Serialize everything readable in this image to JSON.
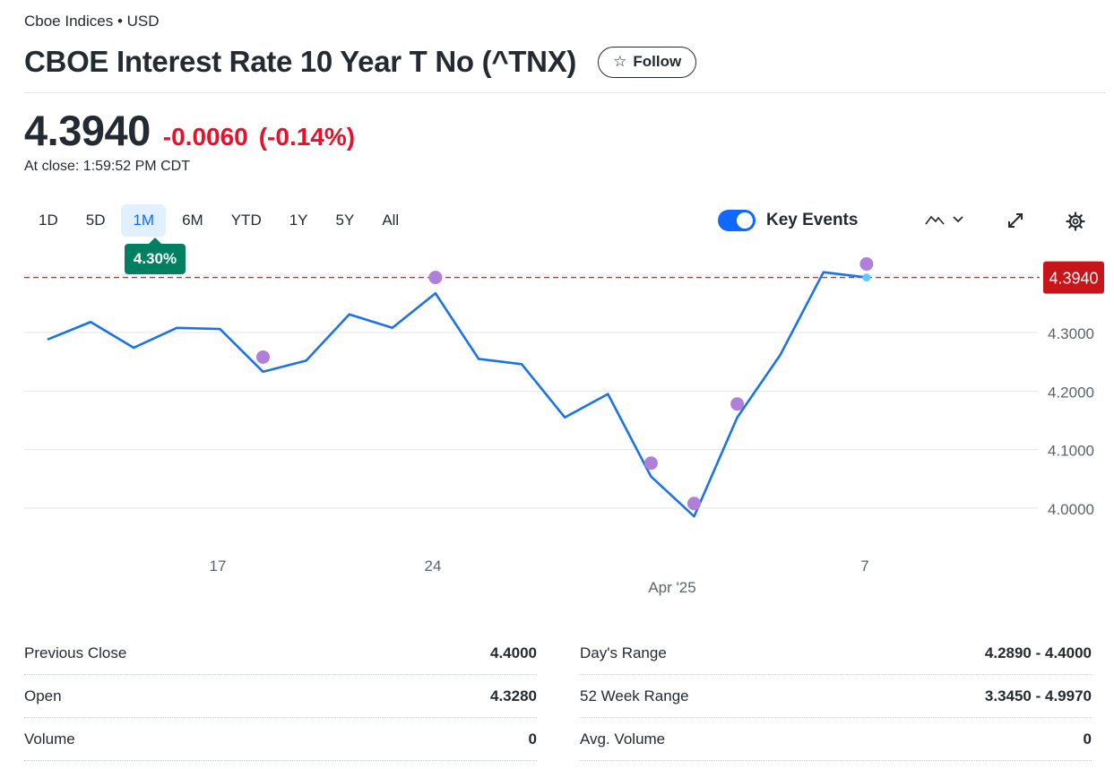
{
  "header": {
    "exchange": "Cboe Indices • USD",
    "title": "CBOE Interest Rate 10 Year T No (^TNX)",
    "follow_label": "Follow"
  },
  "quote": {
    "price": "4.3940",
    "change": "-0.0060",
    "change_pct": "(-0.14%)",
    "close_time": "At close: 1:59:52 PM CDT"
  },
  "ranges": [
    "1D",
    "5D",
    "1M",
    "6M",
    "YTD",
    "1Y",
    "5Y",
    "All"
  ],
  "active_range": "1M",
  "tooltip": "4.30%",
  "key_events": {
    "label": "Key Events",
    "enabled": true
  },
  "icons": [
    "star-icon",
    "mountain-chart-icon",
    "chevron-down-icon",
    "expand-icon",
    "gear-icon"
  ],
  "colors": {
    "line": "#1a73e8",
    "down": "#eb0f29",
    "event": "#b07fd9",
    "tooltip": "#008060"
  },
  "chart_data": {
    "type": "line",
    "y_ticks": [
      "4.3000",
      "4.2000",
      "4.1000",
      "4.0000"
    ],
    "x_ticks": [
      "17",
      "24",
      "7"
    ],
    "x_sublabel": "Apr '25",
    "price_label": "4.3940",
    "reference_value": 4.394,
    "ylim": [
      3.965,
      4.41
    ],
    "values": [
      4.288,
      4.318,
      4.274,
      4.308,
      4.306,
      4.233,
      4.252,
      4.331,
      4.308,
      4.367,
      4.255,
      4.246,
      4.155,
      4.195,
      4.054,
      3.986,
      4.155,
      4.262,
      4.403,
      4.394
    ],
    "event_indices": [
      5,
      9,
      14,
      15,
      16,
      19
    ],
    "event_values": [
      4.258,
      4.394,
      4.077,
      4.008,
      4.178,
      4.417
    ]
  },
  "stats": {
    "left": [
      {
        "label": "Previous Close",
        "value": "4.4000"
      },
      {
        "label": "Open",
        "value": "4.3280"
      },
      {
        "label": "Volume",
        "value": "0"
      }
    ],
    "right": [
      {
        "label": "Day's Range",
        "value": "4.2890 - 4.4000"
      },
      {
        "label": "52 Week Range",
        "value": "3.3450 - 4.9970"
      },
      {
        "label": "Avg. Volume",
        "value": "0"
      }
    ]
  }
}
